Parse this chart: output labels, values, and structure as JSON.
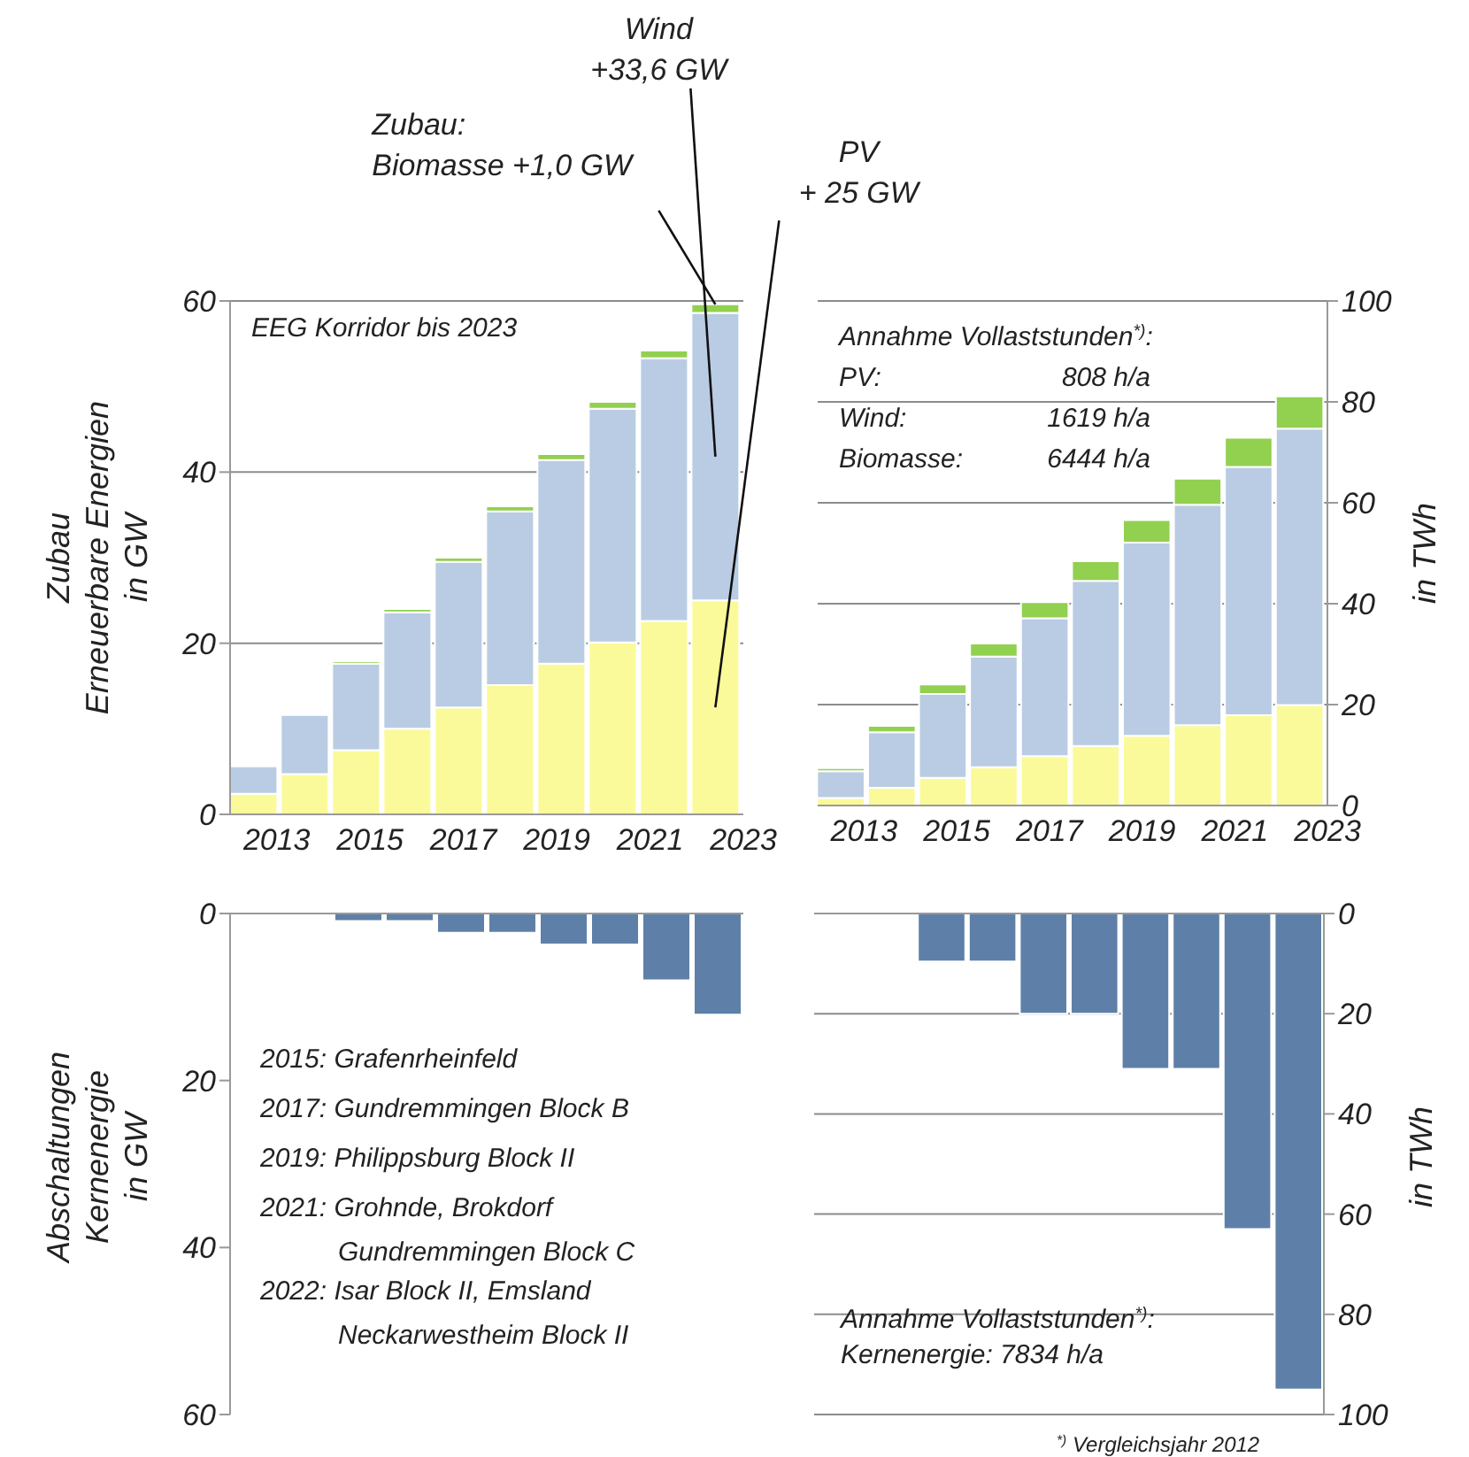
{
  "chart_data": [
    {
      "type": "bar",
      "stacked": true,
      "ylabel": "Zubau\nErneuerbare Energien\nin GW",
      "x": [
        2012.5,
        2013.6,
        2014.7,
        2015.8,
        2016.9,
        2018.0,
        2019.1,
        2020.2,
        2021.3,
        2022.4
      ],
      "xlim": [
        2012,
        2023
      ],
      "xticks": [
        2013,
        2015,
        2017,
        2019,
        2021,
        2023
      ],
      "ylim": [
        0,
        60
      ],
      "yticks": [
        0,
        20,
        40,
        60
      ],
      "grid": "y",
      "series": [
        {
          "color": "#fafa9a",
          "values": [
            2.4,
            4.7,
            7.5,
            10,
            12.5,
            15.1,
            17.6,
            20.1,
            22.6,
            25
          ]
        },
        {
          "color": "#b9cce3",
          "values": [
            3.2,
            6.9,
            10.1,
            13.6,
            17.0,
            20.3,
            23.8,
            27.3,
            30.7,
            33.6
          ]
        },
        {
          "color": "#92d050",
          "values": [
            null,
            null,
            0.3,
            0.4,
            0.5,
            0.6,
            0.7,
            0.8,
            0.9,
            1.0
          ]
        }
      ],
      "annotations": [
        "EEG Korridor bis 2023",
        {
          "text": "Zubau:\nBiomasse +1,0 GW",
          "x": 2022.4,
          "y": 59.6
        },
        "Wind\n+33,6 GW",
        "PV\n+ 25 GW"
      ]
    },
    {
      "type": "bar",
      "stacked": true,
      "ylabel": "in TWh",
      "x": [
        2012.5,
        2013.6,
        2014.7,
        2015.8,
        2016.9,
        2018.0,
        2019.1,
        2020.2,
        2021.3,
        2022.4
      ],
      "xlim": [
        2012,
        2023
      ],
      "xticks": [
        2013,
        2015,
        2017,
        2019,
        2021,
        2023
      ],
      "ylim": [
        0,
        100
      ],
      "yticks": [
        0,
        20,
        40,
        60,
        80,
        100
      ],
      "grid": "y",
      "series": [
        {
          "color": "#fafa9a",
          "values": [
            1.5,
            3.5,
            5.5,
            7.6,
            9.8,
            11.8,
            13.8,
            15.9,
            17.9,
            19.9
          ]
        },
        {
          "color": "#b9cce3",
          "values": [
            5.3,
            11.0,
            16.6,
            21.9,
            27.3,
            32.7,
            38.3,
            43.7,
            49.2,
            54.8
          ]
        },
        {
          "color": "#92d050",
          "values": [
            0.6,
            1.3,
            1.9,
            2.6,
            3.2,
            3.9,
            4.5,
            5.2,
            5.8,
            6.4
          ]
        }
      ],
      "annotations": [
        "Annahme Vollaststunden$^{*)}$:",
        "PV:",
        "808 h/a",
        "Wind:",
        "1619 h/a",
        "Biomasse:",
        "6444 h/a"
      ]
    },
    {
      "type": "bar",
      "ylabel": "Abschaltungen\nKernenergie\nin GW",
      "categories": [
        null,
        null,
        null,
        null,
        null,
        null,
        null,
        null,
        null,
        null
      ],
      "ylim": [
        60,
        0
      ],
      "yticks": [
        0,
        20,
        40,
        60
      ],
      "tick_labels": "y",
      "series": [
        {
          "color": "#5e80a8",
          "values": [
            null,
            null,
            0.9,
            0.9,
            2.3,
            2.3,
            3.7,
            3.7,
            8.0,
            12.1
          ]
        }
      ],
      "annotations": [
        "2015: Grafenrheinfeld",
        "2017: Gundremmingen Block B",
        "2019: Philippsburg Block II",
        "2021: Grohnde, Brokdorf\nGundremmingen Block C",
        "2022: Isar Block II, Emsland\nNeckarwestheim Block II"
      ]
    },
    {
      "type": "bar",
      "ylabel": "in TWh",
      "categories": [
        null,
        null,
        null,
        null,
        null,
        null,
        null,
        null,
        null,
        null
      ],
      "ylim": [
        100,
        0
      ],
      "yticks": [
        0,
        20,
        40,
        60,
        80,
        100
      ],
      "grid": "y",
      "tick_labels": "y",
      "series": [
        {
          "color": "#5e80a8",
          "values": [
            null,
            null,
            9.6,
            9.6,
            20,
            20,
            31,
            31,
            63,
            95
          ]
        }
      ],
      "annotations": [
        "Annahme Vollaststunden$^{*)}$:\nKernenergie: 7834 h/a",
        "$^{*)}$ Vergleichsjahr 2012"
      ]
    }
  ]
}
